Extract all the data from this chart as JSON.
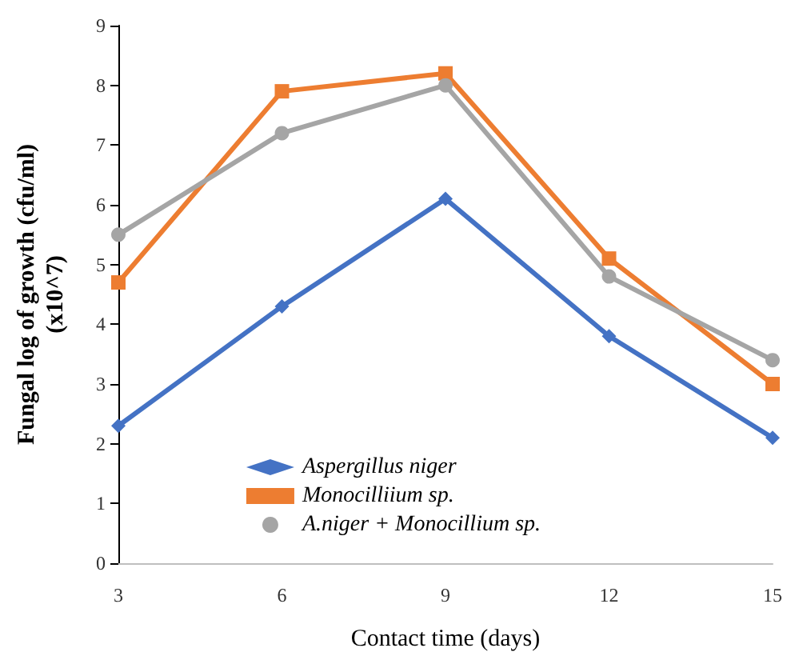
{
  "chart_data": {
    "type": "line",
    "xlabel": "Contact time (days)",
    "ylabel": "Fungal log of growth (cfu/ml)\n(x10^7)",
    "categories": [
      "3",
      "6",
      "9",
      "12",
      "15"
    ],
    "ylim": [
      0,
      9
    ],
    "yticks": [
      0,
      1,
      2,
      3,
      4,
      5,
      6,
      7,
      8,
      9
    ],
    "grid": false,
    "legend": "bottom",
    "line_style": "solid",
    "series": [
      {
        "name": "Aspergillus niger",
        "color": "#4472c4",
        "marker": "diamond",
        "values": [
          2.3,
          4.3,
          6.1,
          3.8,
          2.1
        ]
      },
      {
        "name": "Monocilliium sp.",
        "color": "#ed7d31",
        "marker": "square",
        "values": [
          4.7,
          7.9,
          8.2,
          5.1,
          3.0
        ]
      },
      {
        "name": "A.niger + Monocillium sp.",
        "color": "#a5a5a5",
        "marker": "circle",
        "values": [
          5.5,
          7.2,
          8.0,
          4.8,
          3.4
        ]
      }
    ]
  }
}
